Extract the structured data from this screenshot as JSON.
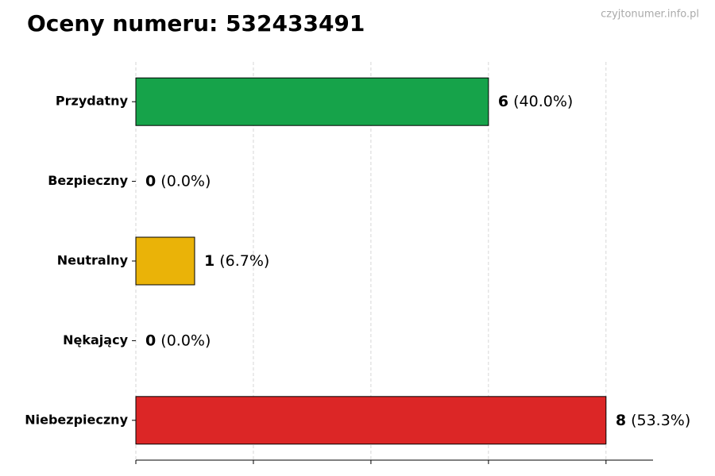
{
  "chart_data": {
    "type": "barh",
    "title": "Oceny numeru: 532433491",
    "watermark": "czyjtonumer.info.pl",
    "categories": [
      "Przydatny",
      "Bezpieczny",
      "Neutralny",
      "Nękający",
      "Niebezpieczny"
    ],
    "values": [
      6,
      0,
      1,
      0,
      8
    ],
    "percent_labels": [
      "(40.0%)",
      "(0.0%)",
      "(6.7%)",
      "(0.0%)",
      "(53.3%)"
    ],
    "colors": [
      "#16a34a",
      null,
      "#eab308",
      null,
      "#dc2626"
    ],
    "xlim": [
      0,
      8.8
    ],
    "xticks": [
      0,
      2,
      4,
      6,
      8
    ],
    "grid": true
  }
}
